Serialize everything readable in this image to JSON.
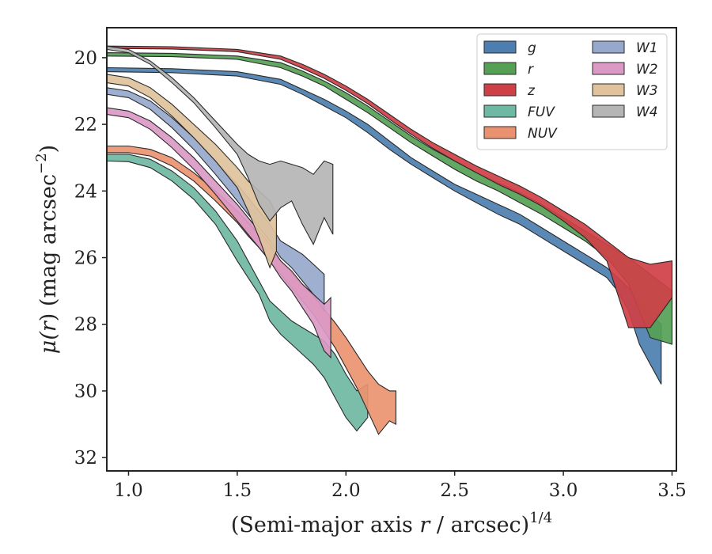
{
  "chart_data": {
    "type": "area",
    "xlabel_main": "(Semi-major axis ",
    "xlabel_var": "r",
    "xlabel_tail": " / arcsec)",
    "xlabel_exp": "1/4",
    "ylabel_main": "μ(",
    "ylabel_var": "r",
    "ylabel_tail": ") (mag arcsec",
    "ylabel_exp": "−2",
    "ylabel_close": ")",
    "xlim": [
      0.9,
      3.52
    ],
    "ylim": [
      32.4,
      19.1
    ],
    "y_inverted": true,
    "grid": false,
    "legend_position": "top-right",
    "legend_columns": 2,
    "x_ticks": [
      {
        "value": 1.0,
        "label": "1.0"
      },
      {
        "value": 1.5,
        "label": "1.5"
      },
      {
        "value": 2.0,
        "label": "2.0"
      },
      {
        "value": 2.5,
        "label": "2.5"
      },
      {
        "value": 3.0,
        "label": "3.0"
      },
      {
        "value": 3.5,
        "label": "3.5"
      }
    ],
    "y_ticks": [
      {
        "value": 20,
        "label": "20"
      },
      {
        "value": 22,
        "label": "22"
      },
      {
        "value": 24,
        "label": "24"
      },
      {
        "value": 26,
        "label": "26"
      },
      {
        "value": 28,
        "label": "28"
      },
      {
        "value": 30,
        "label": "30"
      },
      {
        "value": 32,
        "label": "32"
      }
    ],
    "series": [
      {
        "name": "g",
        "color": "#4c7fb0",
        "x": [
          0.9,
          1.2,
          1.5,
          1.7,
          1.8,
          1.9,
          2.0,
          2.1,
          2.2,
          2.3,
          2.4,
          2.5,
          2.6,
          2.7,
          2.8,
          2.9,
          3.0,
          3.1,
          3.2,
          3.25,
          3.3,
          3.35,
          3.4,
          3.45
        ],
        "top": [
          20.3,
          20.33,
          20.42,
          20.65,
          20.95,
          21.25,
          21.6,
          22.0,
          22.5,
          23.0,
          23.4,
          23.8,
          24.1,
          24.4,
          24.7,
          25.1,
          25.5,
          25.9,
          26.3,
          26.6,
          26.9,
          27.3,
          27.7,
          28.0
        ],
        "bottom": [
          20.42,
          20.45,
          20.55,
          20.8,
          21.1,
          21.45,
          21.8,
          22.25,
          22.75,
          23.2,
          23.6,
          24.0,
          24.35,
          24.7,
          25.0,
          25.4,
          25.8,
          26.2,
          26.6,
          27.0,
          27.6,
          28.6,
          29.2,
          29.8
        ]
      },
      {
        "name": "r",
        "color": "#55a055",
        "x": [
          0.9,
          1.2,
          1.5,
          1.7,
          1.8,
          1.9,
          2.0,
          2.1,
          2.2,
          2.3,
          2.4,
          2.5,
          2.6,
          2.7,
          2.8,
          2.9,
          3.0,
          3.1,
          3.2,
          3.3,
          3.4,
          3.5
        ],
        "top": [
          19.85,
          19.87,
          19.95,
          20.15,
          20.4,
          20.7,
          21.05,
          21.45,
          21.9,
          22.35,
          22.75,
          23.1,
          23.45,
          23.75,
          24.05,
          24.4,
          24.8,
          25.2,
          25.6,
          26.0,
          26.5,
          27.0
        ],
        "bottom": [
          19.95,
          19.97,
          20.05,
          20.3,
          20.55,
          20.85,
          21.25,
          21.65,
          22.1,
          22.55,
          22.95,
          23.35,
          23.7,
          24.0,
          24.35,
          24.7,
          25.1,
          25.5,
          26.0,
          26.8,
          28.4,
          28.6
        ]
      },
      {
        "name": "z",
        "color": "#cf4046",
        "x": [
          0.9,
          1.2,
          1.5,
          1.7,
          1.8,
          1.9,
          2.0,
          2.1,
          2.2,
          2.3,
          2.4,
          2.5,
          2.6,
          2.7,
          2.8,
          2.9,
          3.0,
          3.1,
          3.2,
          3.3,
          3.4,
          3.5
        ],
        "top": [
          19.65,
          19.67,
          19.75,
          19.95,
          20.2,
          20.5,
          20.85,
          21.25,
          21.7,
          22.15,
          22.55,
          22.9,
          23.25,
          23.55,
          23.85,
          24.2,
          24.6,
          25.0,
          25.5,
          26.0,
          26.2,
          26.1
        ],
        "bottom": [
          19.72,
          19.74,
          19.82,
          20.05,
          20.32,
          20.62,
          20.98,
          21.38,
          21.85,
          22.3,
          22.72,
          23.1,
          23.45,
          23.8,
          24.1,
          24.45,
          24.9,
          25.4,
          26.1,
          28.1,
          28.1,
          27.2
        ]
      },
      {
        "name": "FUV",
        "color": "#6fb8a3",
        "x": [
          0.9,
          1.0,
          1.1,
          1.2,
          1.3,
          1.4,
          1.5,
          1.55,
          1.6,
          1.65,
          1.7,
          1.75,
          1.8,
          1.85,
          1.9,
          1.95,
          2.0,
          2.05,
          2.1
        ],
        "top": [
          22.9,
          22.9,
          23.05,
          23.4,
          23.9,
          24.6,
          25.5,
          26.1,
          26.7,
          27.3,
          27.6,
          27.9,
          28.1,
          28.3,
          28.5,
          28.9,
          29.5,
          30.0,
          29.8
        ],
        "bottom": [
          23.1,
          23.12,
          23.3,
          23.7,
          24.25,
          25.0,
          26.1,
          26.6,
          27.1,
          27.9,
          28.3,
          28.6,
          28.9,
          29.2,
          29.6,
          30.2,
          30.8,
          31.2,
          30.8
        ]
      },
      {
        "name": "NUV",
        "color": "#ea9270",
        "x": [
          0.9,
          1.0,
          1.1,
          1.2,
          1.3,
          1.4,
          1.5,
          1.55,
          1.6,
          1.65,
          1.7,
          1.75,
          1.8,
          1.85,
          1.9,
          1.95,
          2.0,
          2.05,
          2.1,
          2.15,
          2.2,
          2.23
        ],
        "top": [
          22.65,
          22.65,
          22.75,
          23.0,
          23.45,
          24.0,
          24.6,
          24.95,
          25.3,
          25.7,
          26.1,
          26.45,
          26.8,
          27.15,
          27.55,
          27.95,
          28.4,
          28.9,
          29.4,
          29.8,
          30.0,
          30.0
        ],
        "bottom": [
          22.85,
          22.85,
          22.95,
          23.25,
          23.7,
          24.3,
          24.95,
          25.35,
          25.7,
          26.1,
          26.5,
          26.9,
          27.3,
          27.7,
          28.2,
          28.7,
          29.3,
          29.9,
          30.6,
          31.3,
          30.9,
          31.0
        ]
      },
      {
        "name": "W1",
        "color": "#96a8cc",
        "x": [
          0.9,
          1.0,
          1.1,
          1.2,
          1.3,
          1.4,
          1.5,
          1.55,
          1.6,
          1.65,
          1.7,
          1.75,
          1.8,
          1.85,
          1.9
        ],
        "top": [
          20.9,
          21.0,
          21.3,
          21.8,
          22.4,
          23.1,
          23.8,
          24.2,
          24.6,
          25.0,
          25.5,
          25.7,
          25.9,
          26.2,
          26.5
        ],
        "bottom": [
          21.1,
          21.2,
          21.55,
          22.1,
          22.75,
          23.5,
          24.3,
          24.7,
          25.1,
          25.5,
          26.0,
          26.3,
          26.7,
          27.1,
          27.6
        ]
      },
      {
        "name": "W2",
        "color": "#db99c6",
        "x": [
          0.9,
          1.0,
          1.1,
          1.2,
          1.3,
          1.4,
          1.5,
          1.55,
          1.6,
          1.65,
          1.7,
          1.75,
          1.8,
          1.85,
          1.9,
          1.93
        ],
        "top": [
          21.5,
          21.6,
          21.9,
          22.4,
          23.0,
          23.7,
          24.4,
          24.8,
          25.2,
          25.6,
          26.1,
          26.4,
          26.8,
          27.1,
          27.4,
          27.2
        ],
        "bottom": [
          21.7,
          21.8,
          22.15,
          22.7,
          23.35,
          24.1,
          24.9,
          25.3,
          25.7,
          26.1,
          26.6,
          27.0,
          27.5,
          28.0,
          28.8,
          29.0
        ]
      },
      {
        "name": "W3",
        "color": "#e0c29c",
        "x": [
          0.9,
          1.0,
          1.1,
          1.2,
          1.3,
          1.4,
          1.5,
          1.55,
          1.6,
          1.65,
          1.68
        ],
        "top": [
          20.5,
          20.6,
          20.9,
          21.4,
          22.0,
          22.6,
          23.3,
          23.7,
          24.0,
          24.3,
          24.7
        ],
        "bottom": [
          20.75,
          20.85,
          21.2,
          21.75,
          22.4,
          23.1,
          23.9,
          24.6,
          25.4,
          26.3,
          25.8
        ]
      },
      {
        "name": "W4",
        "color": "#b5b5b5",
        "x": [
          0.9,
          1.0,
          1.1,
          1.2,
          1.3,
          1.4,
          1.5,
          1.55,
          1.6,
          1.65,
          1.7,
          1.75,
          1.8,
          1.85,
          1.9,
          1.94
        ],
        "top": [
          19.65,
          19.75,
          20.1,
          20.6,
          21.2,
          21.9,
          22.6,
          22.9,
          23.1,
          23.2,
          23.1,
          23.2,
          23.3,
          23.5,
          23.1,
          23.2
        ],
        "bottom": [
          19.75,
          19.85,
          20.2,
          20.75,
          21.35,
          22.1,
          22.9,
          23.6,
          24.4,
          24.9,
          24.5,
          24.3,
          25.0,
          25.6,
          24.8,
          25.3
        ]
      }
    ]
  }
}
